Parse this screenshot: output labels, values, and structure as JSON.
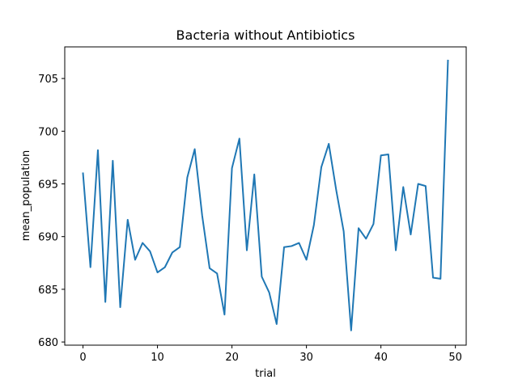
{
  "chart_data": {
    "type": "line",
    "title": "Bacteria without Antibiotics",
    "xlabel": "trial",
    "ylabel": "mean_population",
    "xlim": [
      -2.45,
      51.45
    ],
    "ylim": [
      679.7,
      708.0
    ],
    "xticks": [
      0,
      10,
      20,
      30,
      40,
      50
    ],
    "yticks": [
      680,
      685,
      690,
      695,
      700,
      705
    ],
    "grid": false,
    "legend": "none",
    "series": [
      {
        "color": "#1f77b4",
        "x": [
          0,
          1,
          2,
          3,
          4,
          5,
          6,
          7,
          8,
          9,
          10,
          11,
          12,
          13,
          14,
          15,
          16,
          17,
          18,
          19,
          20,
          21,
          22,
          23,
          24,
          25,
          26,
          27,
          28,
          29,
          30,
          31,
          32,
          33,
          34,
          35,
          36,
          37,
          38,
          39,
          40,
          41,
          42,
          43,
          44,
          45,
          46,
          47,
          48,
          49
        ],
        "values": [
          696.0,
          687.1,
          698.2,
          683.8,
          697.2,
          683.3,
          691.6,
          687.8,
          689.4,
          688.6,
          686.6,
          687.1,
          688.5,
          689.0,
          695.6,
          698.3,
          692.0,
          687.0,
          686.5,
          682.6,
          696.5,
          699.3,
          688.7,
          695.9,
          686.2,
          684.7,
          681.7,
          689.0,
          689.1,
          689.4,
          687.8,
          691.1,
          696.6,
          698.8,
          694.4,
          690.5,
          681.1,
          690.8,
          689.8,
          691.2,
          697.7,
          697.8,
          688.7,
          694.7,
          690.2,
          695.0,
          694.8,
          686.1,
          686.0,
          706.7
        ]
      }
    ]
  }
}
